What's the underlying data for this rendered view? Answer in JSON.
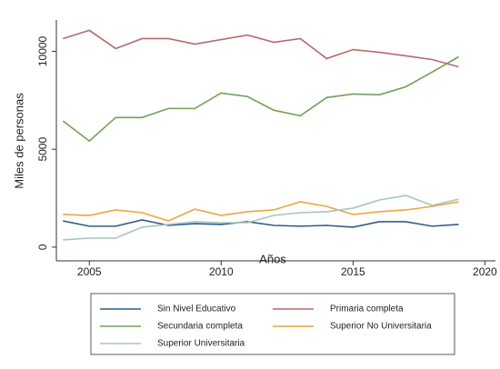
{
  "chart_data": {
    "type": "line",
    "xlabel": "Años",
    "ylabel": "Miles de personas",
    "x": [
      2004,
      2005,
      2006,
      2007,
      2008,
      2009,
      2010,
      2011,
      2012,
      2013,
      2014,
      2015,
      2016,
      2017,
      2018,
      2019
    ],
    "series": [
      {
        "name": "Sin Nivel Educativo",
        "color": "#2e5d87",
        "values": [
          1340,
          1070,
          1070,
          1390,
          1110,
          1200,
          1160,
          1300,
          1110,
          1070,
          1110,
          1020,
          1300,
          1300,
          1070,
          1160
        ]
      },
      {
        "name": "Primaria completa",
        "color": "#b66a6d",
        "values": [
          10650,
          11070,
          10140,
          10650,
          10650,
          10370,
          10600,
          10830,
          10460,
          10650,
          9630,
          10090,
          9950,
          9770,
          9580,
          9210
        ]
      },
      {
        "name": "Secundaria completa",
        "color": "#72a055",
        "values": [
          6440,
          5420,
          6620,
          6620,
          7080,
          7080,
          7870,
          7690,
          6990,
          6710,
          7640,
          7820,
          7780,
          8190,
          8940,
          9720
        ]
      },
      {
        "name": "Superior No Universitaria",
        "color": "#eba640",
        "values": [
          1670,
          1620,
          1900,
          1760,
          1340,
          1940,
          1620,
          1810,
          1900,
          2320,
          2080,
          1670,
          1810,
          1900,
          2080,
          2320
        ]
      },
      {
        "name": "Superior Universitaria",
        "color": "#a6c5c1",
        "values": [
          370,
          460,
          460,
          1020,
          1160,
          1300,
          1250,
          1250,
          1620,
          1760,
          1810,
          1990,
          2410,
          2640,
          2130,
          2450
        ]
      }
    ],
    "xlim": [
      2003.75,
      2020.4
    ],
    "xticks": [
      2005,
      2010,
      2015,
      2020
    ],
    "ylim": [
      -700,
      11600
    ],
    "yticks": [
      0,
      5000,
      10000
    ],
    "legend": "bottom"
  }
}
